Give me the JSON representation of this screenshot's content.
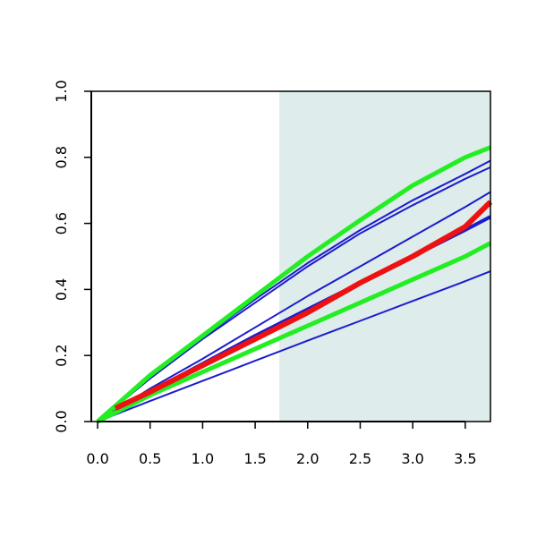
{
  "chart_data": {
    "type": "line",
    "x": [
      0,
      0.5,
      1,
      1.5,
      2,
      2.5,
      3,
      3.5,
      3.74
    ],
    "series": [
      {
        "color": "#1c1ccc",
        "width": 2,
        "values": [
          0,
          0.135,
          0.255,
          0.37,
          0.48,
          0.58,
          0.67,
          0.75,
          0.79
        ]
      },
      {
        "color": "#1c1ccc",
        "width": 2,
        "values": [
          0,
          0.13,
          0.25,
          0.36,
          0.47,
          0.57,
          0.655,
          0.735,
          0.77
        ]
      },
      {
        "color": "#1c1ccc",
        "width": 2,
        "values": [
          0,
          0.1,
          0.19,
          0.285,
          0.38,
          0.47,
          0.56,
          0.65,
          0.695
        ]
      },
      {
        "color": "#1c1ccc",
        "width": 4,
        "values": [
          0,
          0.09,
          0.175,
          0.26,
          0.34,
          0.42,
          0.5,
          0.58,
          0.62
        ]
      },
      {
        "color": "#1c1ccc",
        "width": 2,
        "values": [
          0,
          0.062,
          0.123,
          0.184,
          0.245,
          0.305,
          0.365,
          0.425,
          0.455
        ]
      },
      {
        "color": "#22ee22",
        "width": 5,
        "values": [
          0,
          0.14,
          0.26,
          0.38,
          0.5,
          0.61,
          0.715,
          0.8,
          0.83
        ]
      },
      {
        "color": "#22ee22",
        "width": 5,
        "values": [
          0,
          0.08,
          0.15,
          0.22,
          0.29,
          0.36,
          0.43,
          0.5,
          0.54
        ]
      },
      {
        "color": "#ee1111",
        "width": 6,
        "x": [
          0.17,
          0.5,
          1,
          1.5,
          2,
          2.5,
          3,
          3.5,
          3.74
        ],
        "values": [
          0.04,
          0.09,
          0.17,
          0.25,
          0.33,
          0.42,
          0.5,
          0.59,
          0.665
        ]
      }
    ],
    "shaded_region": {
      "x": [
        1.73,
        3.74
      ],
      "color": "#deecec"
    },
    "xlim": [
      -0.06,
      3.74
    ],
    "ylim": [
      0,
      1
    ],
    "xticks": [
      {
        "value": 0,
        "label": "0.0"
      },
      0.5,
      {
        "value": 1,
        "label": "1.0"
      },
      1.5,
      {
        "value": 2,
        "label": "2.0"
      },
      2.5,
      {
        "value": 3,
        "label": "3.0"
      },
      3.5
    ],
    "yticks": [
      {
        "value": 0,
        "label": "0.0"
      },
      0.2,
      0.4,
      0.6,
      0.8,
      {
        "value": 1,
        "label": "1.0"
      }
    ]
  }
}
